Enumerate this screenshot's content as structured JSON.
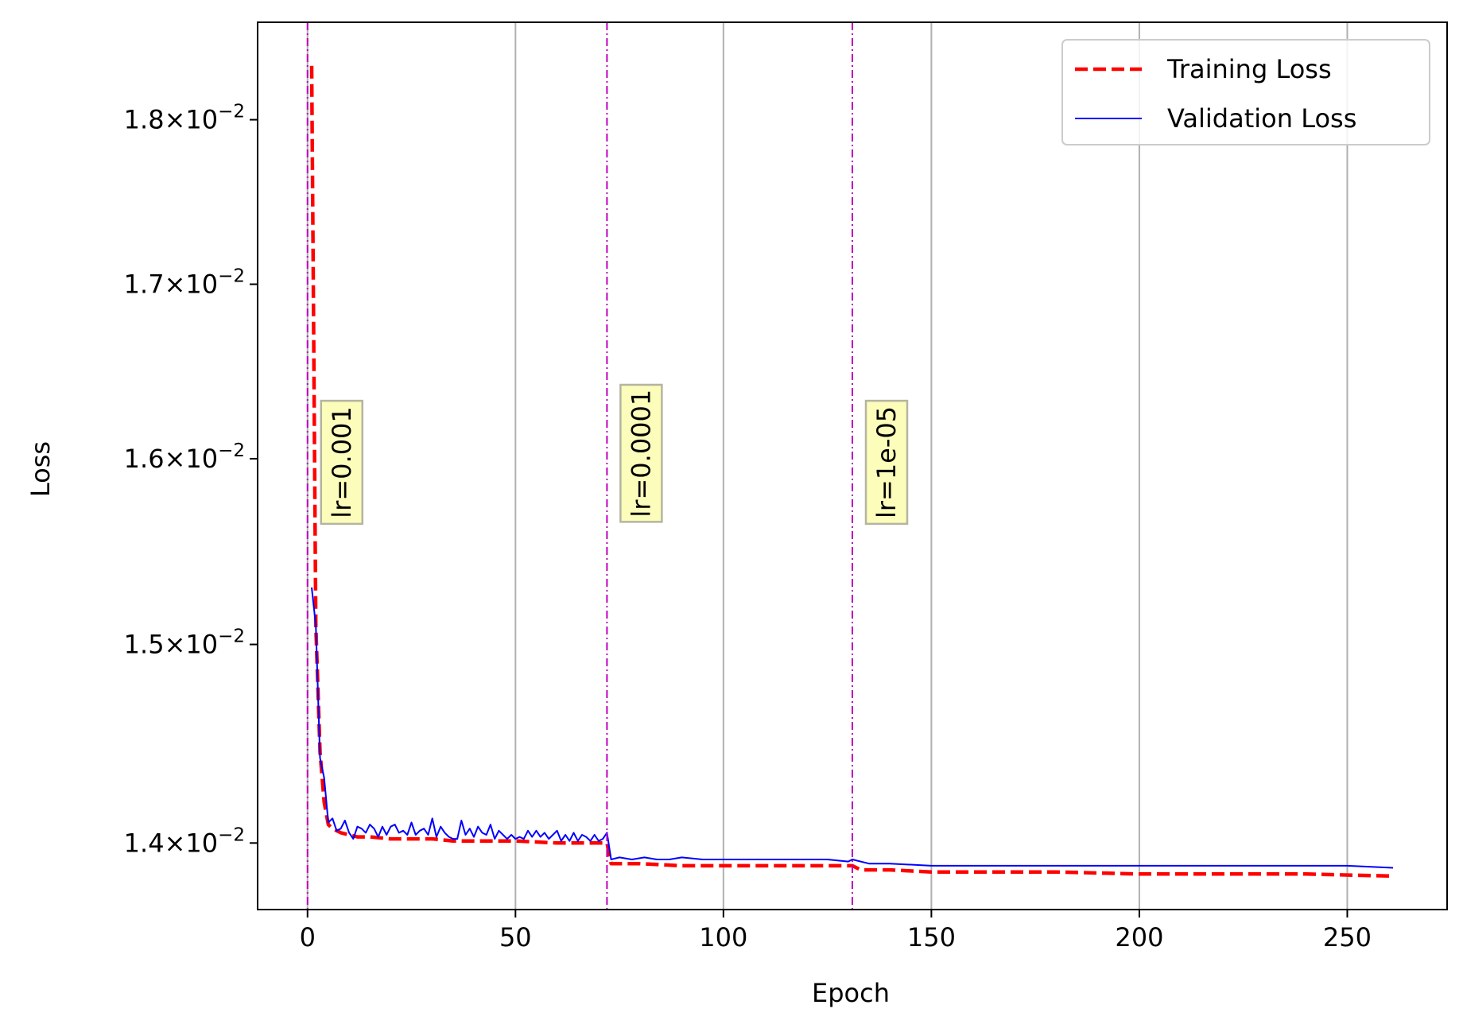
{
  "chart_data": {
    "type": "line",
    "title": "",
    "xlabel": "Epoch",
    "ylabel": "Loss",
    "xlim": [
      -12,
      274
    ],
    "ylim": [
      0.01368,
      0.01862
    ],
    "yscale": "log",
    "grid": "x-major-only",
    "xticks": [
      0,
      50,
      100,
      150,
      200,
      250
    ],
    "xtick_labels": [
      "0",
      "50",
      "100",
      "150",
      "200",
      "250"
    ],
    "yticks": [
      {
        "value": 0.018,
        "mantissa": "1.8",
        "times": "×",
        "base": "10",
        "exponent": "−2"
      },
      {
        "value": 0.017,
        "mantissa": "1.7",
        "times": "×",
        "base": "10",
        "exponent": "−2"
      },
      {
        "value": 0.016,
        "mantissa": "1.6",
        "times": "×",
        "base": "10",
        "exponent": "−2"
      },
      {
        "value": 0.015,
        "mantissa": "1.5",
        "times": "×",
        "base": "10",
        "exponent": "−2"
      },
      {
        "value": 0.014,
        "mantissa": "1.4",
        "times": "×",
        "base": "10",
        "exponent": "−2"
      }
    ],
    "legend": {
      "position": "upper-right",
      "entries": [
        "Training Loss",
        "Validation Loss"
      ]
    },
    "series": [
      {
        "name": "Training Loss",
        "color": "#ff0000",
        "style": "dashed",
        "x": [
          1,
          2,
          3,
          4,
          5,
          6,
          8,
          10,
          12,
          15,
          20,
          25,
          30,
          35,
          40,
          50,
          60,
          70,
          72,
          73,
          80,
          90,
          100,
          110,
          120,
          130,
          131,
          133,
          140,
          150,
          160,
          180,
          200,
          220,
          240,
          261
        ],
        "y": [
          0.01834,
          0.0151,
          0.01445,
          0.0142,
          0.01409,
          0.01407,
          0.01405,
          0.01404,
          0.01403,
          0.01403,
          0.01402,
          0.01402,
          0.01402,
          0.01401,
          0.01401,
          0.01401,
          0.014,
          0.014,
          0.014,
          0.0139,
          0.0139,
          0.01389,
          0.01389,
          0.01389,
          0.01389,
          0.01389,
          0.01389,
          0.01387,
          0.01387,
          0.01386,
          0.01386,
          0.01386,
          0.01385,
          0.01385,
          0.01385,
          0.01384
        ]
      },
      {
        "name": "Validation Loss",
        "color": "#0000ff",
        "style": "solid",
        "x": [
          1,
          2,
          3,
          4,
          5,
          6,
          7,
          8,
          9,
          10,
          11,
          12,
          13,
          14,
          15,
          16,
          17,
          18,
          19,
          20,
          21,
          22,
          23,
          24,
          25,
          26,
          27,
          28,
          29,
          30,
          31,
          32,
          33,
          34,
          35,
          36,
          37,
          38,
          39,
          40,
          41,
          42,
          43,
          44,
          45,
          46,
          47,
          48,
          49,
          50,
          51,
          52,
          53,
          54,
          55,
          56,
          57,
          58,
          59,
          60,
          61,
          62,
          63,
          64,
          65,
          66,
          67,
          68,
          69,
          70,
          71,
          72,
          73,
          75,
          78,
          81,
          84,
          87,
          90,
          95,
          100,
          105,
          110,
          115,
          120,
          125,
          130,
          131,
          135,
          140,
          150,
          160,
          170,
          180,
          190,
          200,
          210,
          220,
          230,
          240,
          250,
          261
        ],
        "y": [
          0.0153,
          0.0151,
          0.01442,
          0.01432,
          0.0141,
          0.01412,
          0.01406,
          0.01407,
          0.01411,
          0.01405,
          0.01402,
          0.01408,
          0.01407,
          0.01405,
          0.01409,
          0.01407,
          0.01403,
          0.01408,
          0.01404,
          0.01408,
          0.01409,
          0.01405,
          0.01406,
          0.01404,
          0.0141,
          0.01404,
          0.01406,
          0.01407,
          0.01404,
          0.01412,
          0.01403,
          0.01408,
          0.01405,
          0.01403,
          0.01402,
          0.01402,
          0.01411,
          0.01404,
          0.01407,
          0.01403,
          0.01408,
          0.01405,
          0.01404,
          0.01409,
          0.01402,
          0.01406,
          0.01404,
          0.01402,
          0.01404,
          0.01402,
          0.01403,
          0.01402,
          0.01406,
          0.01403,
          0.01406,
          0.01403,
          0.01405,
          0.01402,
          0.01404,
          0.01406,
          0.01401,
          0.01404,
          0.01401,
          0.01405,
          0.01401,
          0.01404,
          0.01403,
          0.01401,
          0.01404,
          0.01401,
          0.01402,
          0.01405,
          0.01392,
          0.01393,
          0.01392,
          0.01393,
          0.01392,
          0.01392,
          0.01393,
          0.01392,
          0.01392,
          0.01392,
          0.01392,
          0.01392,
          0.01392,
          0.01392,
          0.01391,
          0.01392,
          0.0139,
          0.0139,
          0.01389,
          0.01389,
          0.01389,
          0.01389,
          0.01389,
          0.01389,
          0.01389,
          0.01389,
          0.01389,
          0.01389,
          0.01389,
          0.01388
        ]
      }
    ],
    "lr_markers": [
      {
        "epoch": 0,
        "label": "lr=0.001",
        "label_y": 0.01598
      },
      {
        "epoch": 72,
        "label": "lr=0.0001",
        "label_y": 0.01603
      },
      {
        "epoch": 131,
        "label": "lr=1e-05",
        "label_y": 0.01598
      }
    ],
    "colors": {
      "marker_line": "#bf00bf",
      "label_box_fill": "#fcfcbb",
      "label_box_edge": "#b4b4a0",
      "grid": "#b0b0b0"
    }
  }
}
